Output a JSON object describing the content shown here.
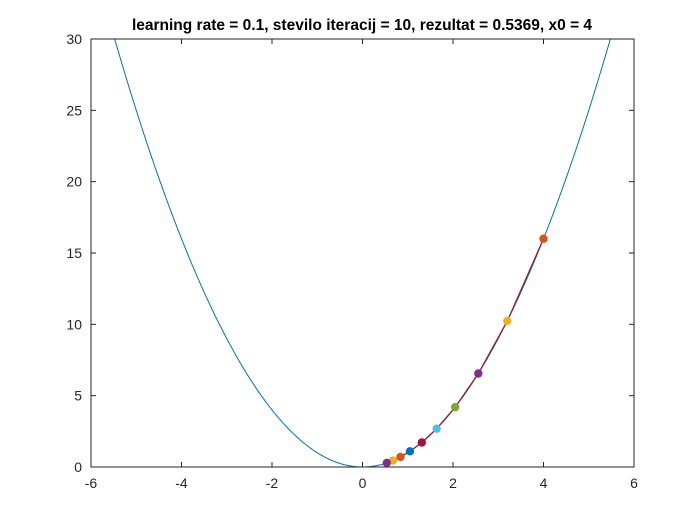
{
  "chart_data": {
    "type": "line",
    "title": "learning rate = 0.1, stevilo iteracij = 10, rezultat = 0.5369, x0 = 4",
    "xlabel": "",
    "ylabel": "",
    "xlim": [
      -6,
      6
    ],
    "ylim": [
      0,
      30
    ],
    "xticks": [
      "-6",
      "-4",
      "-2",
      "0",
      "2",
      "4",
      "6"
    ],
    "yticks": [
      "0",
      "5",
      "10",
      "15",
      "20",
      "25",
      "30"
    ],
    "grid": false,
    "legend": "none",
    "curve": {
      "function": "y = x^2",
      "x_range": [
        -6,
        6
      ],
      "color": "#0072BD"
    },
    "iterations": {
      "x": [
        4,
        3.2,
        2.56,
        2.048,
        1.6384,
        1.3107,
        1.0486,
        0.8389,
        0.6711,
        0.5369
      ],
      "y": [
        16,
        10.24,
        6.5536,
        4.1943,
        2.6844,
        1.718,
        1.0995,
        0.7037,
        0.4504,
        0.2882
      ],
      "marker_colors": [
        "#D95319",
        "#EDB120",
        "#7E2F8E",
        "#77AC30",
        "#4DBEEE",
        "#A2142F",
        "#0072BD",
        "#D95319",
        "#EDB120",
        "#7E2F8E"
      ],
      "path_color": "#A2142F"
    }
  }
}
